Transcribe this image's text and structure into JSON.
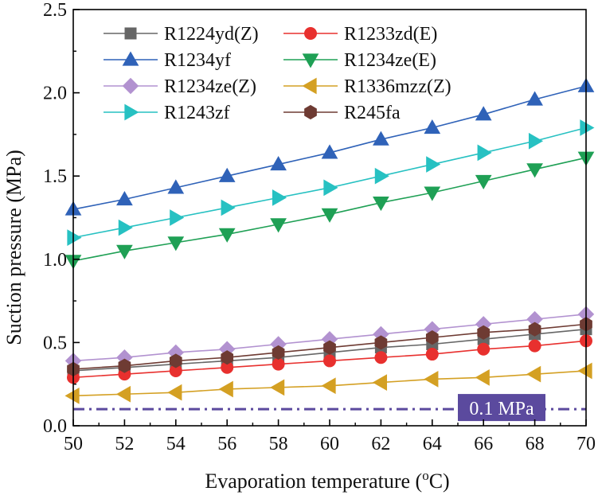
{
  "chart_data": {
    "type": "line",
    "title": "",
    "xlabel": "Evaporation temperature (°C)",
    "xlabel_parts": [
      "Evaporation temperature (",
      "o",
      "C)"
    ],
    "ylabel": "Suction pressure (MPa)",
    "xlim": [
      50,
      70
    ],
    "ylim": [
      0.0,
      2.5
    ],
    "xticks": [
      50,
      52,
      54,
      56,
      58,
      60,
      62,
      64,
      66,
      68,
      70
    ],
    "xtick_labels": [
      "50",
      "52",
      "54",
      "56",
      "58",
      "60",
      "62",
      "64",
      "66",
      "68",
      "70"
    ],
    "yticks": [
      0.0,
      0.5,
      1.0,
      1.5,
      2.0,
      2.5
    ],
    "ytick_labels": [
      "0.0",
      "0.5",
      "1.0",
      "1.5",
      "2.0",
      "2.5"
    ],
    "grid": false,
    "legend_position": "top-left",
    "x": [
      50,
      52,
      54,
      56,
      58,
      60,
      62,
      64,
      66,
      68,
      70
    ],
    "series": [
      {
        "name": "R1224yd(Z)",
        "color": "#666666",
        "marker": "square",
        "values": [
          0.33,
          0.35,
          0.37,
          0.39,
          0.41,
          0.44,
          0.47,
          0.49,
          0.52,
          0.55,
          0.58
        ]
      },
      {
        "name": "R1233zd(E)",
        "color": "#e8302e",
        "marker": "circle",
        "values": [
          0.29,
          0.31,
          0.33,
          0.35,
          0.37,
          0.39,
          0.41,
          0.43,
          0.46,
          0.48,
          0.51
        ]
      },
      {
        "name": "R1234yf",
        "color": "#2f62b8",
        "marker": "triangle-up",
        "values": [
          1.3,
          1.36,
          1.43,
          1.5,
          1.57,
          1.64,
          1.72,
          1.79,
          1.87,
          1.96,
          2.04
        ]
      },
      {
        "name": "R1234ze(E)",
        "color": "#1fa055",
        "marker": "triangle-down",
        "values": [
          0.99,
          1.05,
          1.1,
          1.15,
          1.21,
          1.27,
          1.34,
          1.4,
          1.47,
          1.54,
          1.61
        ]
      },
      {
        "name": "R1234ze(Z)",
        "color": "#b292d0",
        "marker": "diamond",
        "values": [
          0.39,
          0.41,
          0.44,
          0.46,
          0.49,
          0.52,
          0.55,
          0.58,
          0.61,
          0.64,
          0.67
        ]
      },
      {
        "name": "R1336mzz(Z)",
        "color": "#d4a023",
        "marker": "triangle-left",
        "values": [
          0.18,
          0.19,
          0.2,
          0.22,
          0.23,
          0.24,
          0.26,
          0.28,
          0.29,
          0.31,
          0.33
        ]
      },
      {
        "name": "R1243zf",
        "color": "#27c1c2",
        "marker": "triangle-right",
        "values": [
          1.13,
          1.19,
          1.25,
          1.31,
          1.37,
          1.43,
          1.5,
          1.57,
          1.64,
          1.71,
          1.79
        ]
      },
      {
        "name": "R245fa",
        "color": "#6e3b33",
        "marker": "hexagon",
        "values": [
          0.34,
          0.36,
          0.39,
          0.41,
          0.44,
          0.47,
          0.5,
          0.53,
          0.56,
          0.58,
          0.61
        ]
      }
    ],
    "reference_line": {
      "value": 0.1,
      "label": "0.1 MPa",
      "color": "#5b4a9e",
      "style": "dash-dot"
    }
  }
}
